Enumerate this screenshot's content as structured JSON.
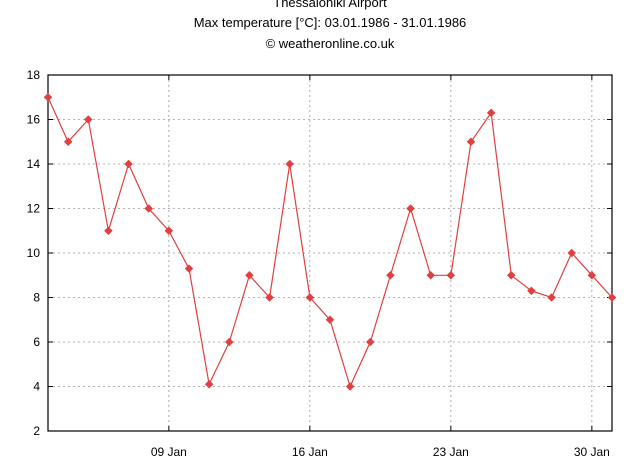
{
  "chart_data": {
    "type": "line",
    "title_lines": [
      "Thessaloniki Airport",
      "Max temperature [°C]: 03.01.1986 - 31.01.1986",
      "© weatheronline.co.uk"
    ],
    "xlabel": "",
    "ylabel": "",
    "x_unit": "day of January 1986",
    "xlim": [
      3,
      31
    ],
    "ylim": [
      2,
      18
    ],
    "y_ticks": [
      2,
      4,
      6,
      8,
      10,
      12,
      14,
      16,
      18
    ],
    "x_ticks": [
      {
        "value": 9,
        "label": "09 Jan"
      },
      {
        "value": 16,
        "label": "16 Jan"
      },
      {
        "value": 23,
        "label": "23 Jan"
      },
      {
        "value": 30,
        "label": "30 Jan"
      }
    ],
    "grid": true,
    "series": [
      {
        "name": "Max temperature",
        "color": "#e04040",
        "marker": "diamond",
        "x": [
          3,
          4,
          5,
          6,
          7,
          8,
          9,
          10,
          11,
          12,
          13,
          14,
          15,
          16,
          17,
          18,
          19,
          20,
          21,
          22,
          23,
          24,
          25,
          26,
          27,
          28,
          29,
          30,
          31
        ],
        "values": [
          17,
          15,
          16,
          11,
          14,
          12,
          11,
          9.3,
          4.1,
          6,
          9,
          8,
          14,
          8,
          7,
          4,
          6,
          9,
          12,
          9,
          9,
          15,
          16.3,
          9,
          8.3,
          8,
          10,
          9,
          8
        ]
      }
    ]
  }
}
